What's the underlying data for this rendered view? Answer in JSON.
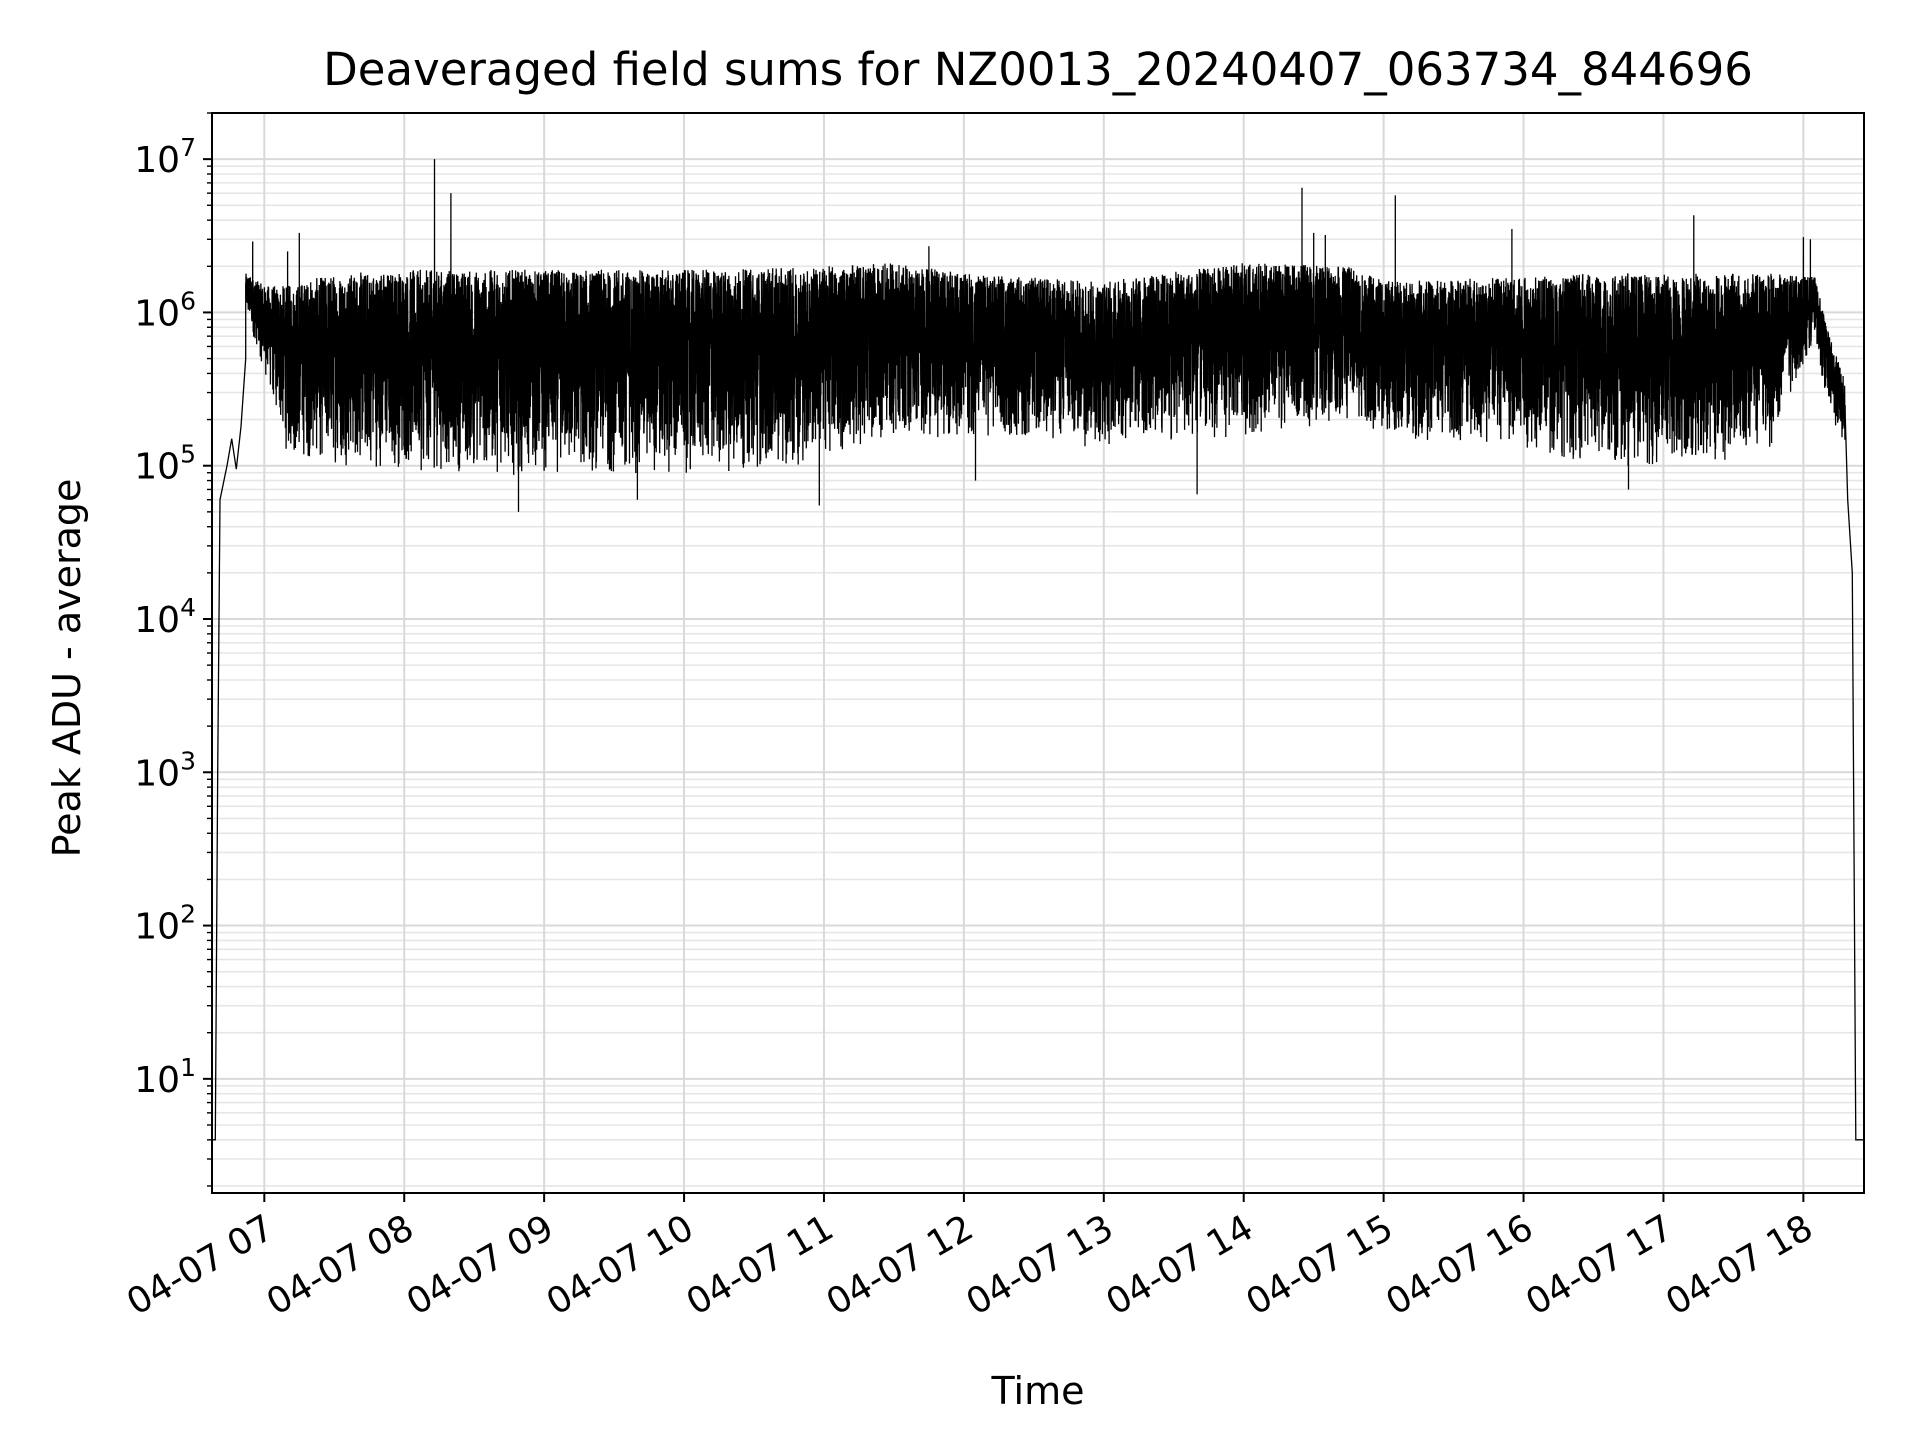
{
  "chart_data": {
    "type": "line",
    "title": "Deaveraged field sums for NZ0013_20240407_063734_844696",
    "xlabel": "Time",
    "ylabel": "Peak ADU - average",
    "yscale": "log",
    "ylim": [
      1.8,
      20000000
    ],
    "xlim": [
      "04-07 06:37:34",
      "04-07 18:26:00"
    ],
    "grid": true,
    "line_color": "#000000",
    "x_ticks": [
      {
        "t": "04-07 07:00",
        "label": "04-07 07"
      },
      {
        "t": "04-07 08:00",
        "label": "04-07 08"
      },
      {
        "t": "04-07 09:00",
        "label": "04-07 09"
      },
      {
        "t": "04-07 10:00",
        "label": "04-07 10"
      },
      {
        "t": "04-07 11:00",
        "label": "04-07 11"
      },
      {
        "t": "04-07 12:00",
        "label": "04-07 12"
      },
      {
        "t": "04-07 13:00",
        "label": "04-07 13"
      },
      {
        "t": "04-07 14:00",
        "label": "04-07 14"
      },
      {
        "t": "04-07 15:00",
        "label": "04-07 15"
      },
      {
        "t": "04-07 16:00",
        "label": "04-07 16"
      },
      {
        "t": "04-07 17:00",
        "label": "04-07 17"
      },
      {
        "t": "04-07 18:00",
        "label": "04-07 18"
      }
    ],
    "y_ticks": [
      {
        "value": 10,
        "base": "10",
        "exp": "1"
      },
      {
        "value": 100,
        "base": "10",
        "exp": "2"
      },
      {
        "value": 1000,
        "base": "10",
        "exp": "3"
      },
      {
        "value": 10000,
        "base": "10",
        "exp": "4"
      },
      {
        "value": 100000,
        "base": "10",
        "exp": "5"
      },
      {
        "value": 1000000,
        "base": "10",
        "exp": "6"
      },
      {
        "value": 10000000,
        "base": "10",
        "exp": "7"
      }
    ],
    "series": [
      {
        "points": [
          [
            "04-07 06:37:34",
            4
          ],
          [
            "04-07 06:39:00",
            4
          ],
          [
            "04-07 06:40:00",
            1000
          ],
          [
            "04-07 06:41:00",
            60000
          ],
          [
            "04-07 06:44:00",
            100000
          ],
          [
            "04-07 06:46:00",
            150000
          ],
          [
            "04-07 06:48:00",
            95000
          ],
          [
            "04-07 06:50:00",
            180000
          ],
          [
            "04-07 06:52:00",
            500000
          ],
          [
            "04-07 06:54:00",
            1200000
          ],
          [
            "04-07 06:56:00",
            1500000
          ],
          [
            "04-07 06:58:00",
            1100000
          ],
          [
            "04-07 07:00:00",
            800000
          ],
          [
            "04-07 07:05:00",
            400000
          ],
          [
            "04-07 07:10:00",
            200000
          ],
          [
            "04-07 07:15:00",
            120000
          ],
          [
            "04-07 07:30:00",
            100000
          ],
          [
            "04-07 08:00:00",
            100000
          ],
          [
            "04-07 09:00:00",
            100000
          ],
          [
            "04-07 10:00:00",
            100000
          ],
          [
            "04-07 11:00:00",
            150000
          ],
          [
            "04-07 12:00:00",
            150000
          ],
          [
            "04-07 13:00:00",
            150000
          ],
          [
            "04-07 14:00:00",
            200000
          ],
          [
            "04-07 15:00:00",
            150000
          ],
          [
            "04-07 16:00:00",
            100000
          ],
          [
            "04-07 17:00:00",
            100000
          ],
          [
            "04-07 17:50:00",
            500000
          ],
          [
            "04-07 18:00:00",
            900000
          ],
          [
            "04-07 18:05:00",
            1000000
          ],
          [
            "04-07 18:08:00",
            500000
          ],
          [
            "04-07 18:12:00",
            250000
          ],
          [
            "04-07 18:16:00",
            150000
          ],
          [
            "04-07 18:19:00",
            60000
          ],
          [
            "04-07 18:21:00",
            20000
          ],
          [
            "04-07 18:22:30",
            4
          ],
          [
            "04-07 18:26:00",
            4
          ]
        ],
        "band": [
          [
            "04-07 06:52:00",
            1000000,
            1800000
          ],
          [
            "04-07 07:00:00",
            400000,
            1500000
          ],
          [
            "04-07 07:10:00",
            110000,
            1500000
          ],
          [
            "04-07 07:30:00",
            100000,
            1800000
          ],
          [
            "04-07 08:00:00",
            90000,
            1900000
          ],
          [
            "04-07 09:00:00",
            85000,
            1900000
          ],
          [
            "04-07 10:00:00",
            85000,
            1900000
          ],
          [
            "04-07 10:45:00",
            95000,
            1950000
          ],
          [
            "04-07 11:30:00",
            150000,
            2100000
          ],
          [
            "04-07 12:00:00",
            150000,
            1800000
          ],
          [
            "04-07 13:00:00",
            130000,
            1600000
          ],
          [
            "04-07 14:00:00",
            150000,
            2100000
          ],
          [
            "04-07 14:45:00",
            200000,
            2000000
          ],
          [
            "04-07 15:00:00",
            150000,
            1600000
          ],
          [
            "04-07 16:00:00",
            130000,
            1700000
          ],
          [
            "04-07 16:30:00",
            100000,
            1800000
          ],
          [
            "04-07 17:00:00",
            95000,
            1800000
          ],
          [
            "04-07 17:45:00",
            120000,
            1800000
          ],
          [
            "04-07 18:05:00",
            700000,
            1700000
          ],
          [
            "04-07 18:10:00",
            250000,
            800000
          ],
          [
            "04-07 18:18:00",
            120000,
            350000
          ]
        ],
        "spikes": [
          [
            "04-07 06:55:00",
            2900000
          ],
          [
            "04-07 07:10:00",
            2500000
          ],
          [
            "04-07 07:15:00",
            3300000
          ],
          [
            "04-07 08:13:00",
            10000000
          ],
          [
            "04-07 08:20:00",
            6000000
          ],
          [
            "04-07 08:49:00",
            50000
          ],
          [
            "04-07 09:40:00",
            60000
          ],
          [
            "04-07 10:58:00",
            55000
          ],
          [
            "04-07 11:45:00",
            2700000
          ],
          [
            "04-07 12:05:00",
            80000
          ],
          [
            "04-07 13:40:00",
            65000
          ],
          [
            "04-07 14:25:00",
            6500000
          ],
          [
            "04-07 14:30:00",
            3300000
          ],
          [
            "04-07 14:35:00",
            3200000
          ],
          [
            "04-07 15:05:00",
            5800000
          ],
          [
            "04-07 15:55:00",
            3500000
          ],
          [
            "04-07 16:45:00",
            70000
          ],
          [
            "04-07 17:13:00",
            4300000
          ],
          [
            "04-07 18:00:00",
            3100000
          ],
          [
            "04-07 18:03:00",
            3000000
          ]
        ]
      }
    ]
  }
}
